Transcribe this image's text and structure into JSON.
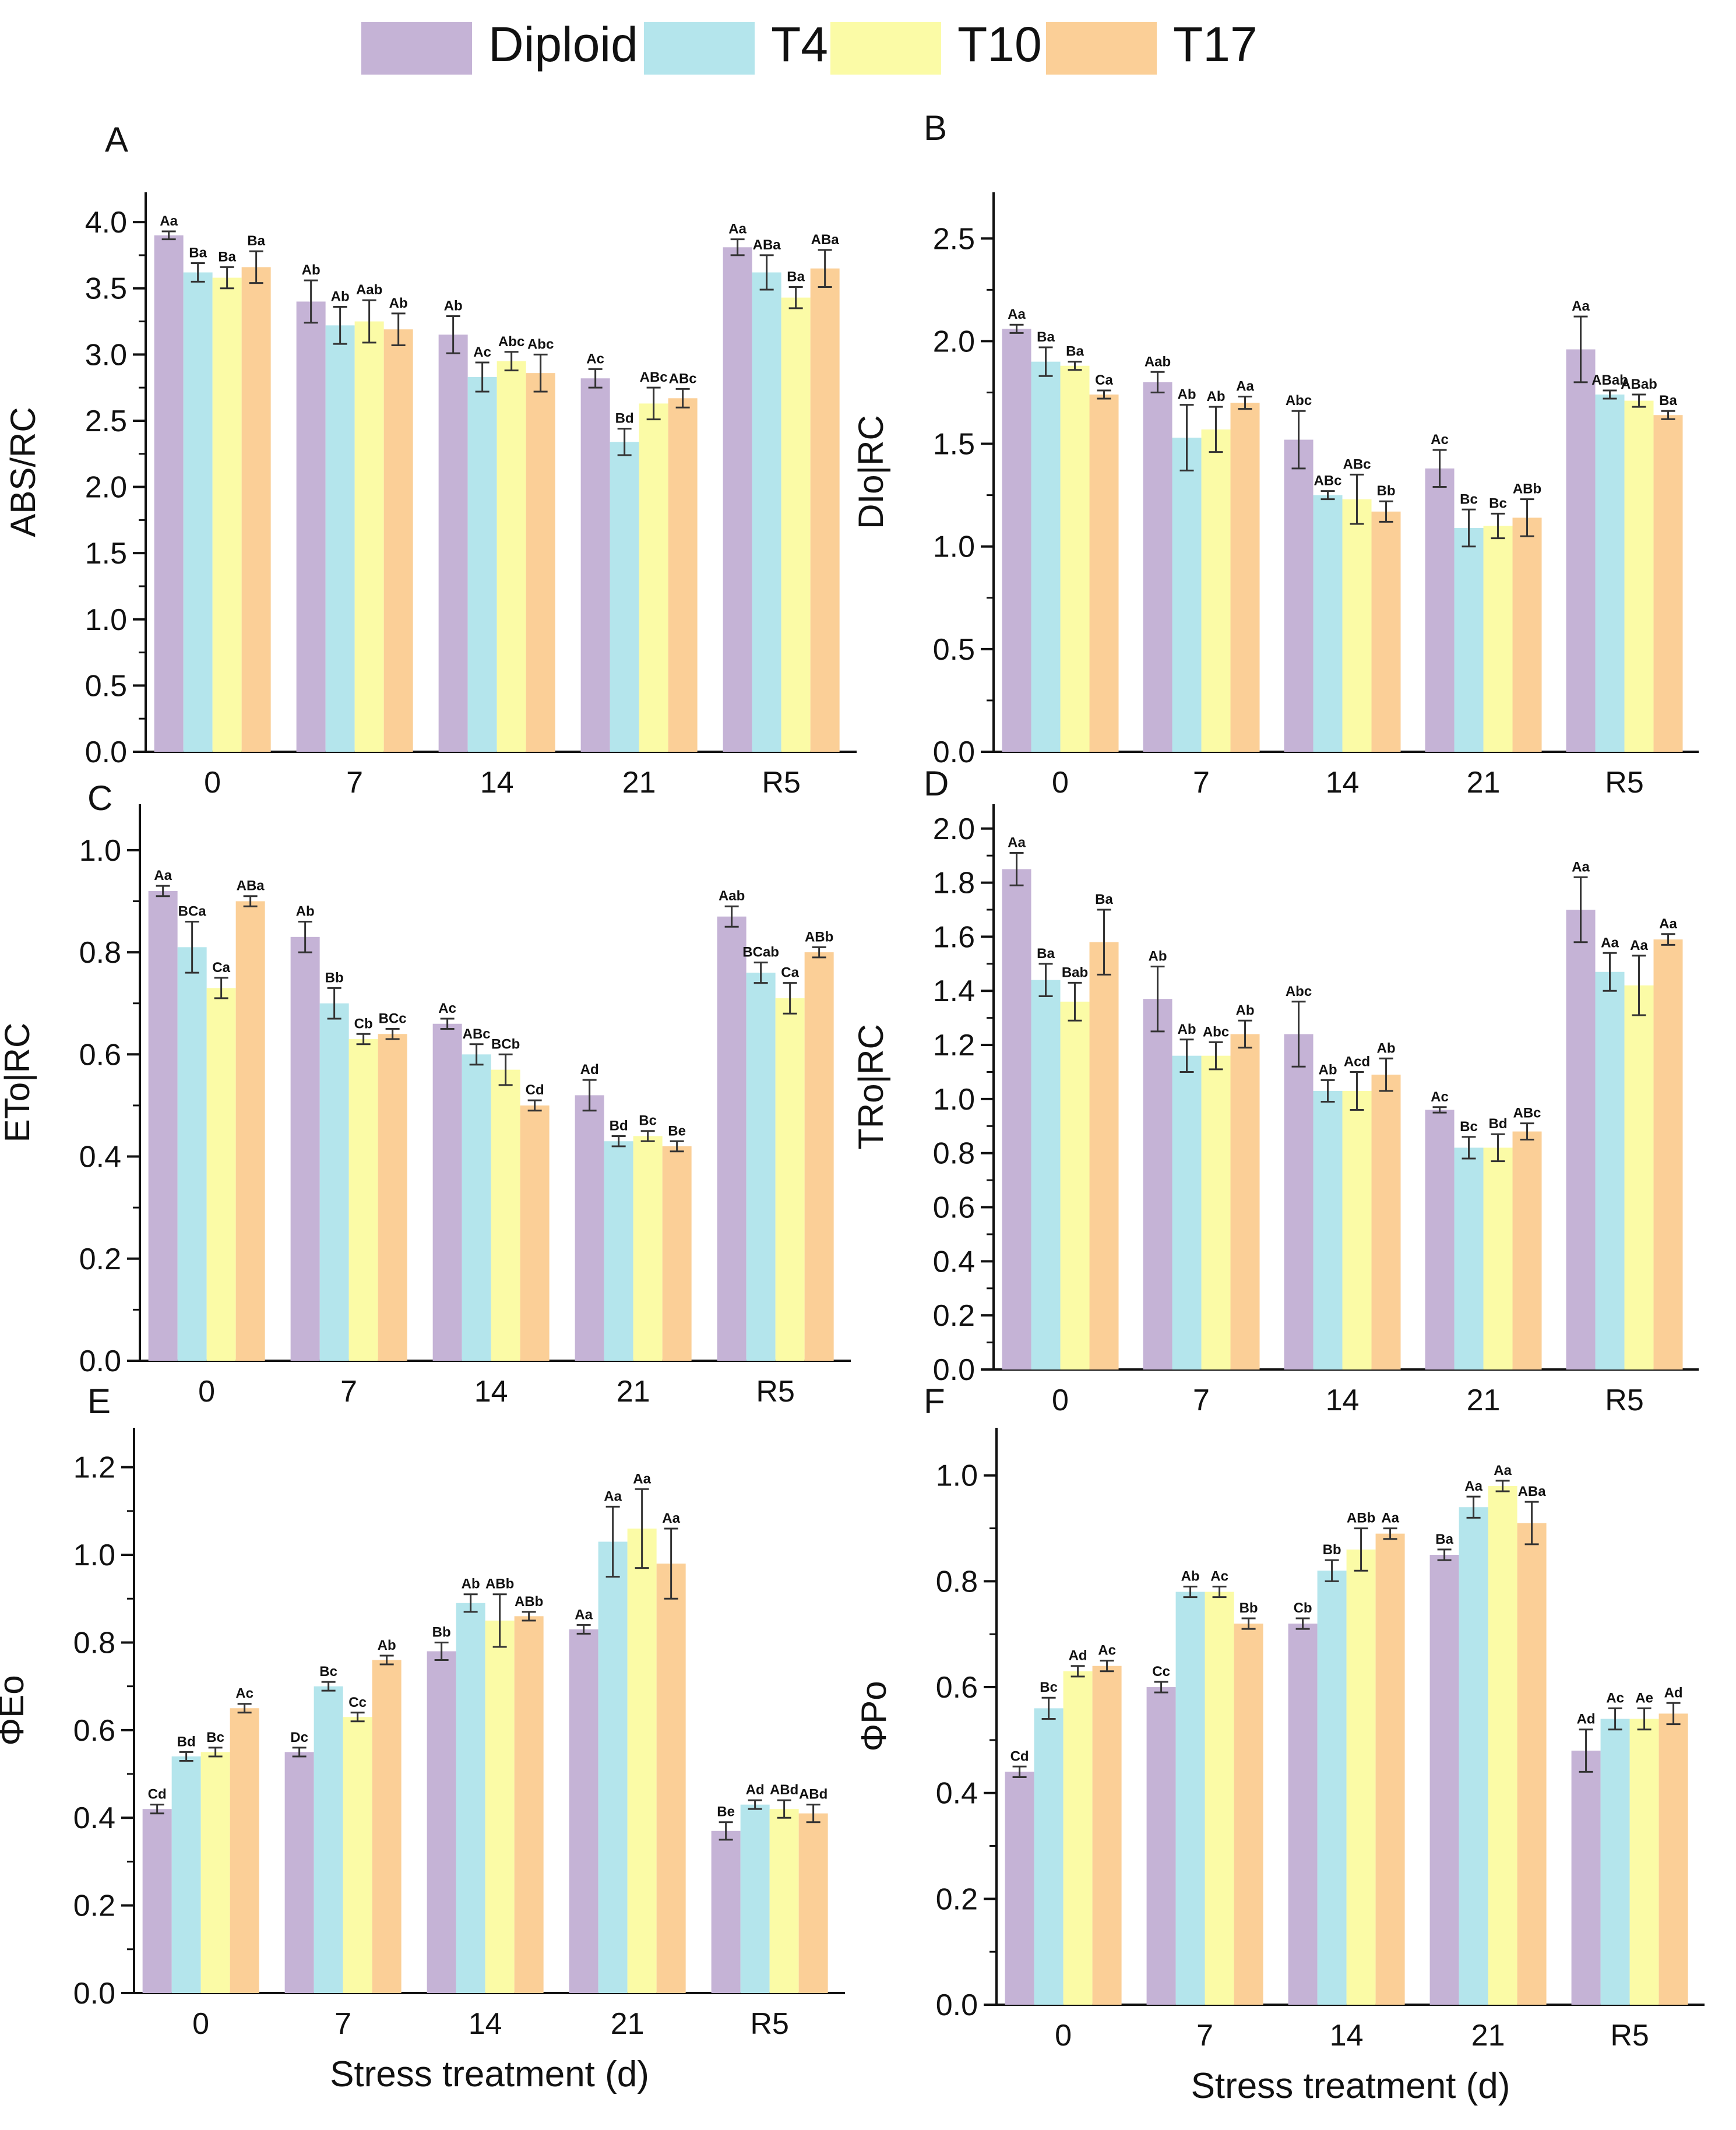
{
  "legend": [
    {
      "name": "Diploid",
      "color": "#c5b3d6"
    },
    {
      "name": "T4",
      "color": "#b4e5ec"
    },
    {
      "name": "T10",
      "color": "#fbfba6"
    },
    {
      "name": "T17",
      "color": "#fbcf97"
    }
  ],
  "chart_data": [
    {
      "panel": "A",
      "type": "bar",
      "ylabel": "ABS/RC",
      "xlabel": "",
      "categories": [
        "0",
        "7",
        "14",
        "21",
        "R5"
      ],
      "ylim": [
        0,
        4.0
      ],
      "yticks": [
        0,
        0.5,
        1.0,
        1.5,
        2.0,
        2.5,
        3.0,
        3.5,
        4.0
      ],
      "series": [
        {
          "name": "Diploid",
          "values": [
            3.9,
            3.4,
            3.15,
            2.82,
            3.81
          ],
          "errors": [
            0.03,
            0.16,
            0.14,
            0.07,
            0.06
          ],
          "labels": [
            "Aa",
            "Ab",
            "Ab",
            "Ac",
            "Aa"
          ]
        },
        {
          "name": "T4",
          "values": [
            3.62,
            3.22,
            2.83,
            2.34,
            3.62
          ],
          "errors": [
            0.07,
            0.14,
            0.11,
            0.1,
            0.13
          ],
          "labels": [
            "Ba",
            "Ab",
            "Ac",
            "Bd",
            "ABa"
          ]
        },
        {
          "name": "T10",
          "values": [
            3.58,
            3.25,
            2.95,
            2.63,
            3.43
          ],
          "errors": [
            0.08,
            0.16,
            0.07,
            0.12,
            0.08
          ],
          "labels": [
            "Ba",
            "Aab",
            "Abc",
            "ABc",
            "Ba"
          ]
        },
        {
          "name": "T17",
          "values": [
            3.66,
            3.19,
            2.86,
            2.67,
            3.65
          ],
          "errors": [
            0.12,
            0.12,
            0.14,
            0.07,
            0.14
          ],
          "labels": [
            "Ba",
            "Ab",
            "Abc",
            "ABc",
            "ABa"
          ]
        }
      ]
    },
    {
      "panel": "B",
      "type": "bar",
      "ylabel": "DIo|RC",
      "xlabel": "",
      "categories": [
        "0",
        "7",
        "14",
        "21",
        "R5"
      ],
      "ylim": [
        0,
        2.5
      ],
      "yticks": [
        0,
        0.5,
        1.0,
        1.5,
        2.0,
        2.5
      ],
      "series": [
        {
          "name": "Diploid",
          "values": [
            2.06,
            1.8,
            1.52,
            1.38,
            1.96
          ],
          "errors": [
            0.02,
            0.05,
            0.14,
            0.09,
            0.16
          ],
          "labels": [
            "Aa",
            "Aab",
            "Abc",
            "Ac",
            "Aa"
          ]
        },
        {
          "name": "T4",
          "values": [
            1.9,
            1.53,
            1.25,
            1.09,
            1.74
          ],
          "errors": [
            0.07,
            0.16,
            0.02,
            0.09,
            0.02
          ],
          "labels": [
            "Ba",
            "Ab",
            "ABc",
            "Bc",
            "ABab"
          ]
        },
        {
          "name": "T10",
          "values": [
            1.88,
            1.57,
            1.23,
            1.1,
            1.71
          ],
          "errors": [
            0.02,
            0.11,
            0.12,
            0.06,
            0.03
          ],
          "labels": [
            "Ba",
            "Ab",
            "ABc",
            "Bc",
            "ABab"
          ]
        },
        {
          "name": "T17",
          "values": [
            1.74,
            1.7,
            1.17,
            1.14,
            1.64
          ],
          "errors": [
            0.02,
            0.03,
            0.05,
            0.09,
            0.02
          ],
          "labels": [
            "Ca",
            "Aa",
            "Bb",
            "ABb",
            "Ba"
          ]
        }
      ]
    },
    {
      "panel": "C",
      "type": "bar",
      "ylabel": "ETo|RC",
      "xlabel": "",
      "categories": [
        "0",
        "7",
        "14",
        "21",
        "R5"
      ],
      "ylim": [
        0,
        1.0
      ],
      "yticks": [
        0,
        0.2,
        0.4,
        0.6,
        0.8,
        1.0
      ],
      "series": [
        {
          "name": "Diploid",
          "values": [
            0.92,
            0.83,
            0.66,
            0.52,
            0.87
          ],
          "errors": [
            0.01,
            0.03,
            0.01,
            0.03,
            0.02
          ],
          "labels": [
            "Aa",
            "Ab",
            "Ac",
            "Ad",
            "Aab"
          ]
        },
        {
          "name": "T4",
          "values": [
            0.81,
            0.7,
            0.6,
            0.43,
            0.76
          ],
          "errors": [
            0.05,
            0.03,
            0.02,
            0.01,
            0.02
          ],
          "labels": [
            "BCa",
            "Bb",
            "ABc",
            "Bd",
            "BCab"
          ]
        },
        {
          "name": "T10",
          "values": [
            0.73,
            0.63,
            0.57,
            0.44,
            0.71
          ],
          "errors": [
            0.02,
            0.01,
            0.03,
            0.01,
            0.03
          ],
          "labels": [
            "Ca",
            "Cb",
            "BCb",
            "Bc",
            "Ca"
          ]
        },
        {
          "name": "T17",
          "values": [
            0.9,
            0.64,
            0.5,
            0.42,
            0.8
          ],
          "errors": [
            0.01,
            0.01,
            0.01,
            0.01,
            0.01
          ],
          "labels": [
            "ABa",
            "BCc",
            "Cd",
            "Be",
            "ABb"
          ]
        }
      ]
    },
    {
      "panel": "D",
      "type": "bar",
      "ylabel": "TRo|RC",
      "xlabel": "",
      "categories": [
        "0",
        "7",
        "14",
        "21",
        "R5"
      ],
      "ylim": [
        0,
        2.0
      ],
      "yticks": [
        0,
        0.2,
        0.4,
        0.6,
        0.8,
        1.0,
        1.2,
        1.4,
        1.6,
        1.8,
        2.0
      ],
      "series": [
        {
          "name": "Diploid",
          "values": [
            1.85,
            1.37,
            1.24,
            0.96,
            1.7
          ],
          "errors": [
            0.06,
            0.12,
            0.12,
            0.01,
            0.12
          ],
          "labels": [
            "Aa",
            "Ab",
            "Abc",
            "Ac",
            "Aa"
          ]
        },
        {
          "name": "T4",
          "values": [
            1.44,
            1.16,
            1.03,
            0.82,
            1.47
          ],
          "errors": [
            0.06,
            0.06,
            0.04,
            0.04,
            0.07
          ],
          "labels": [
            "Ba",
            "Ab",
            "Ab",
            "Bc",
            "Aa"
          ]
        },
        {
          "name": "T10",
          "values": [
            1.36,
            1.16,
            1.03,
            0.82,
            1.42
          ],
          "errors": [
            0.07,
            0.05,
            0.07,
            0.05,
            0.11
          ],
          "labels": [
            "Bab",
            "Abc",
            "Acd",
            "Bd",
            "Aa"
          ]
        },
        {
          "name": "T17",
          "values": [
            1.58,
            1.24,
            1.09,
            0.88,
            1.59
          ],
          "errors": [
            0.12,
            0.05,
            0.06,
            0.03,
            0.02
          ],
          "labels": [
            "Ba",
            "Ab",
            "Ab",
            "ABc",
            "Aa"
          ]
        }
      ]
    },
    {
      "panel": "E",
      "type": "bar",
      "ylabel": "ΦEo",
      "xlabel": "Stress treatment (d)",
      "categories": [
        "0",
        "7",
        "14",
        "21",
        "R5"
      ],
      "ylim": [
        0,
        1.3
      ],
      "yticks": [
        0,
        0.2,
        0.4,
        0.6,
        0.8,
        1.0,
        1.2
      ],
      "series": [
        {
          "name": "Diploid",
          "values": [
            0.42,
            0.55,
            0.78,
            0.83,
            0.37
          ],
          "errors": [
            0.01,
            0.01,
            0.02,
            0.01,
            0.02
          ],
          "labels": [
            "Cd",
            "Dc",
            "Bb",
            "Aa",
            "Be"
          ]
        },
        {
          "name": "T4",
          "values": [
            0.54,
            0.7,
            0.89,
            1.03,
            0.43
          ],
          "errors": [
            0.01,
            0.01,
            0.02,
            0.08,
            0.01
          ],
          "labels": [
            "Bd",
            "Bc",
            "Ab",
            "Aa",
            "Ad"
          ]
        },
        {
          "name": "T10",
          "values": [
            0.55,
            0.63,
            0.85,
            1.06,
            0.42
          ],
          "errors": [
            0.01,
            0.01,
            0.06,
            0.09,
            0.02
          ],
          "labels": [
            "Bc",
            "Cc",
            "ABb",
            "Aa",
            "ABd"
          ]
        },
        {
          "name": "T17",
          "values": [
            0.65,
            0.76,
            0.86,
            0.98,
            0.41
          ],
          "errors": [
            0.01,
            0.01,
            0.01,
            0.08,
            0.02
          ],
          "labels": [
            "Ac",
            "Ab",
            "ABb",
            "Aa",
            "ABd"
          ]
        }
      ]
    },
    {
      "panel": "F",
      "type": "bar",
      "ylabel": "ΦPo",
      "xlabel": "Stress treatment (d)",
      "categories": [
        "0",
        "7",
        "14",
        "21",
        "R5"
      ],
      "ylim": [
        0,
        1.1
      ],
      "yticks": [
        0,
        0.2,
        0.4,
        0.6,
        0.8,
        1.0
      ],
      "series": [
        {
          "name": "Diploid",
          "values": [
            0.44,
            0.6,
            0.72,
            0.85,
            0.48
          ],
          "errors": [
            0.01,
            0.01,
            0.01,
            0.01,
            0.04
          ],
          "labels": [
            "Cd",
            "Cc",
            "Cb",
            "Ba",
            "Ad"
          ]
        },
        {
          "name": "T4",
          "values": [
            0.56,
            0.78,
            0.82,
            0.94,
            0.54
          ],
          "errors": [
            0.02,
            0.01,
            0.02,
            0.02,
            0.02
          ],
          "labels": [
            "Bc",
            "Ab",
            "Bb",
            "Aa",
            "Ac"
          ]
        },
        {
          "name": "T10",
          "values": [
            0.63,
            0.78,
            0.86,
            0.98,
            0.54
          ],
          "errors": [
            0.01,
            0.01,
            0.04,
            0.01,
            0.02
          ],
          "labels": [
            "Ad",
            "Ac",
            "ABb",
            "Aa",
            "Ae"
          ]
        },
        {
          "name": "T17",
          "values": [
            0.64,
            0.72,
            0.89,
            0.91,
            0.55
          ],
          "errors": [
            0.01,
            0.01,
            0.01,
            0.04,
            0.02
          ],
          "labels": [
            "Ac",
            "Bb",
            "Aa",
            "ABa",
            "Ad"
          ]
        }
      ]
    }
  ]
}
